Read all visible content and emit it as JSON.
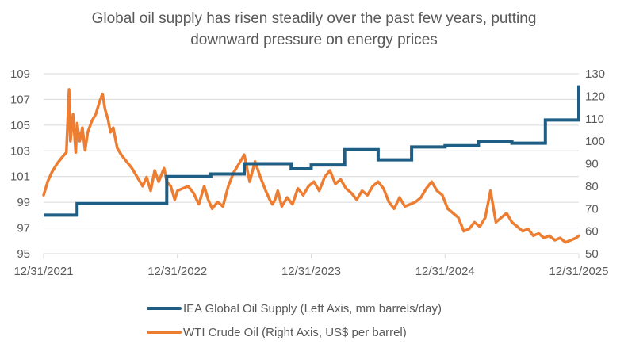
{
  "chart_data": {
    "type": "line",
    "title": "Global oil supply has risen steadily over the past few years, putting downward pressure on energy prices",
    "title_lines": [
      "Global oil supply has risen steadily over the past few years, putting",
      "downward pressure on energy prices"
    ],
    "xlabel": "",
    "x_range": [
      "2021-12-31",
      "2025-12-31"
    ],
    "x_ticks": [
      "12/31/2021",
      "12/31/2022",
      "12/31/2023",
      "12/31/2024",
      "12/31/2025"
    ],
    "left_axis": {
      "label": "",
      "ylim": [
        95,
        109
      ],
      "ticks": [
        95,
        97,
        99,
        101,
        103,
        105,
        107,
        109
      ]
    },
    "right_axis": {
      "label": "",
      "ylim": [
        50,
        130
      ],
      "ticks": [
        50,
        60,
        70,
        80,
        90,
        100,
        110,
        120,
        130
      ]
    },
    "grid": true,
    "legend_position": "bottom",
    "series": [
      {
        "name": "IEA Global Oil Supply (Left Axis, mm barrels/day)",
        "axis": "left",
        "color": "#1F5E84",
        "style": "step",
        "x_years": [
          0.0,
          0.25,
          0.75,
          0.92,
          1.25,
          1.5,
          1.85,
          2.0,
          2.25,
          2.5,
          2.75,
          3.0,
          3.25,
          3.5,
          3.75,
          4.0
        ],
        "values": [
          98.0,
          98.9,
          98.9,
          101.0,
          101.2,
          102.0,
          101.6,
          101.9,
          103.1,
          102.3,
          103.3,
          103.4,
          103.7,
          103.6,
          105.4,
          108.1
        ]
      },
      {
        "name": "WTI Crude Oil (Right Axis, US$ per barrel)",
        "axis": "right",
        "color": "#ED7D31",
        "style": "line",
        "x_years": [
          0.0,
          0.03,
          0.06,
          0.1,
          0.14,
          0.17,
          0.19,
          0.2,
          0.22,
          0.24,
          0.25,
          0.27,
          0.29,
          0.31,
          0.33,
          0.36,
          0.39,
          0.42,
          0.44,
          0.46,
          0.48,
          0.5,
          0.52,
          0.55,
          0.58,
          0.62,
          0.66,
          0.7,
          0.74,
          0.77,
          0.8,
          0.83,
          0.86,
          0.9,
          0.92,
          0.95,
          0.98,
          1.0,
          1.04,
          1.08,
          1.12,
          1.16,
          1.2,
          1.23,
          1.26,
          1.3,
          1.34,
          1.38,
          1.42,
          1.46,
          1.5,
          1.54,
          1.58,
          1.62,
          1.66,
          1.69,
          1.71,
          1.73,
          1.75,
          1.78,
          1.82,
          1.86,
          1.9,
          1.94,
          1.98,
          2.02,
          2.06,
          2.1,
          2.14,
          2.18,
          2.22,
          2.26,
          2.3,
          2.34,
          2.38,
          2.42,
          2.46,
          2.5,
          2.54,
          2.58,
          2.62,
          2.66,
          2.7,
          2.74,
          2.78,
          2.82,
          2.86,
          2.9,
          2.94,
          2.98,
          3.02,
          3.06,
          3.1,
          3.14,
          3.18,
          3.22,
          3.26,
          3.3,
          3.34,
          3.38,
          3.42,
          3.46,
          3.5,
          3.54,
          3.58,
          3.62,
          3.66,
          3.7,
          3.74,
          3.78,
          3.82,
          3.86,
          3.9,
          3.94,
          3.98,
          4.0
        ],
        "values": [
          76,
          82,
          86,
          90,
          93,
          95,
          123,
          100,
          112,
          95,
          108,
          100,
          106,
          96,
          104,
          109,
          112,
          118,
          121,
          114,
          110,
          104,
          106,
          97,
          94,
          91,
          88,
          84,
          80,
          84,
          78,
          87,
          82,
          88,
          82,
          80,
          74,
          78,
          79,
          80,
          77,
          72,
          80,
          74,
          70,
          73,
          71,
          80,
          86,
          90,
          94,
          82,
          91,
          84,
          78,
          74,
          72,
          74,
          78,
          71,
          75,
          72,
          79,
          76,
          80,
          82,
          78,
          84,
          87,
          81,
          83,
          79,
          77,
          74,
          78,
          76,
          80,
          82,
          79,
          73,
          70,
          75,
          71,
          72,
          73,
          75,
          79,
          82,
          78,
          76,
          70,
          68,
          66,
          60,
          61,
          64,
          62,
          66,
          78,
          64,
          66,
          68,
          64,
          62,
          60,
          61,
          58,
          59,
          57,
          58,
          56,
          57,
          55,
          56,
          57,
          58
        ]
      }
    ]
  }
}
